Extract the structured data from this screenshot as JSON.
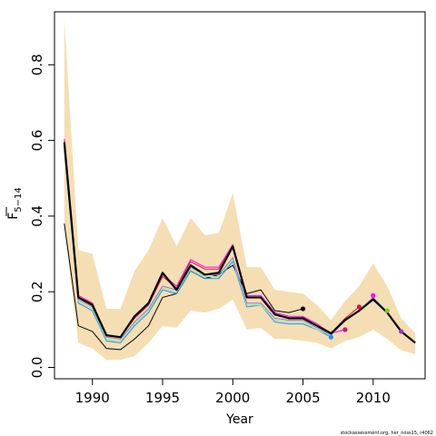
{
  "chart_data": {
    "type": "line",
    "xlabel": "Year",
    "ylabel_main": "F",
    "ylabel_sub": "5−14",
    "xlim": [
      1987.3,
      2013.7
    ],
    "ylim": [
      -0.03,
      0.94
    ],
    "xticks": [
      1990,
      1995,
      2000,
      2005,
      2010
    ],
    "yticks": [
      0.0,
      0.2,
      0.4,
      0.6,
      0.8
    ],
    "xtick_labels": [
      "1990",
      "1995",
      "2000",
      "2005",
      "2010"
    ],
    "ytick_labels": [
      "0.0",
      "0.2",
      "0.4",
      "0.6",
      "0.8"
    ],
    "grid": false,
    "credit": "stockassessment.org, her_noss15, r4062",
    "band": {
      "color": "#F5DEB3",
      "x": [
        1988,
        1989,
        1990,
        1991,
        1992,
        1993,
        1994,
        1995,
        1996,
        1997,
        1998,
        1999,
        2000,
        2001,
        2002,
        2003,
        2004,
        2005,
        2006,
        2007,
        2008,
        2009,
        2010,
        2011,
        2012,
        2013
      ],
      "lower": [
        0.37,
        0.065,
        0.05,
        0.02,
        0.02,
        0.03,
        0.065,
        0.11,
        0.105,
        0.15,
        0.145,
        0.155,
        0.18,
        0.1,
        0.105,
        0.075,
        0.075,
        0.07,
        0.065,
        0.05,
        0.07,
        0.08,
        0.1,
        0.075,
        0.045,
        0.035
      ],
      "upper": [
        0.92,
        0.31,
        0.3,
        0.155,
        0.155,
        0.255,
        0.31,
        0.395,
        0.32,
        0.395,
        0.35,
        0.355,
        0.46,
        0.265,
        0.265,
        0.205,
        0.2,
        0.195,
        0.165,
        0.125,
        0.175,
        0.215,
        0.275,
        0.215,
        0.13,
        0.09
      ]
    },
    "series": [
      {
        "color": "#000000",
        "width": 1,
        "x": [
          1988,
          1989,
          1990,
          1991,
          1992,
          1993,
          1994,
          1995,
          1996,
          1997,
          1998,
          1999,
          2000,
          2001,
          2002,
          2003,
          2004,
          2005
        ],
        "values": [
          0.38,
          0.11,
          0.095,
          0.05,
          0.047,
          0.075,
          0.11,
          0.185,
          0.195,
          0.255,
          0.235,
          0.245,
          0.27,
          0.195,
          0.205,
          0.15,
          0.145,
          0.155
        ]
      },
      {
        "color": "#FF00FF",
        "width": 1,
        "x": [
          1988,
          1989,
          1990,
          1991,
          1992,
          1993,
          1994,
          1995,
          1996,
          1997,
          1998,
          1999,
          2000,
          2001,
          2002,
          2003,
          2004,
          2005,
          2006,
          2007,
          2008
        ],
        "values": [
          0.605,
          0.19,
          0.17,
          0.085,
          0.08,
          0.13,
          0.17,
          0.245,
          0.215,
          0.285,
          0.265,
          0.265,
          0.325,
          0.19,
          0.19,
          0.145,
          0.135,
          0.135,
          0.115,
          0.09,
          0.1
        ]
      },
      {
        "color": "#DC143C",
        "width": 1,
        "x": [
          1988,
          1989,
          1990,
          1991,
          1992,
          1993,
          1994,
          1995,
          1996,
          1997,
          1998,
          1999,
          2000,
          2001,
          2002,
          2003,
          2004,
          2005,
          2006,
          2007,
          2008,
          2009
        ],
        "values": [
          0.6,
          0.185,
          0.17,
          0.085,
          0.08,
          0.13,
          0.165,
          0.24,
          0.21,
          0.28,
          0.26,
          0.26,
          0.32,
          0.185,
          0.185,
          0.14,
          0.13,
          0.13,
          0.11,
          0.09,
          0.13,
          0.16
        ]
      },
      {
        "color": "#1E90FF",
        "width": 1,
        "x": [
          1988,
          1989,
          1990,
          1991,
          1992,
          1993,
          1994,
          1995,
          1996,
          1997,
          1998,
          1999,
          2000,
          2001,
          2002,
          2003,
          2004,
          2005,
          2006,
          2007
        ],
        "values": [
          0.575,
          0.17,
          0.15,
          0.07,
          0.065,
          0.11,
          0.145,
          0.205,
          0.195,
          0.255,
          0.235,
          0.235,
          0.28,
          0.16,
          0.165,
          0.12,
          0.115,
          0.115,
          0.1,
          0.08
        ]
      },
      {
        "color": "#90EE90",
        "width": 1,
        "x": [
          1988,
          1989,
          1990,
          1991,
          1992,
          1993,
          1994,
          1995,
          1996,
          1997,
          1998,
          1999,
          2000,
          2001,
          2002,
          2003,
          2004,
          2005,
          2006,
          2007,
          2008,
          2009,
          2010,
          2011
        ],
        "values": [
          0.58,
          0.175,
          0.155,
          0.075,
          0.07,
          0.115,
          0.15,
          0.21,
          0.2,
          0.26,
          0.24,
          0.24,
          0.285,
          0.165,
          0.165,
          0.125,
          0.12,
          0.12,
          0.1,
          0.085,
          0.125,
          0.15,
          0.185,
          0.15
        ]
      },
      {
        "color": "#9370DB",
        "width": 1,
        "x": [
          1988,
          1989,
          1990,
          1991,
          1992,
          1993,
          1994,
          1995,
          1996,
          1997,
          1998,
          1999,
          2000,
          2001,
          2002,
          2003,
          2004,
          2005,
          2006,
          2007,
          2008,
          2009,
          2010,
          2011,
          2012
        ],
        "values": [
          0.585,
          0.18,
          0.16,
          0.08,
          0.075,
          0.12,
          0.155,
          0.215,
          0.205,
          0.265,
          0.245,
          0.245,
          0.29,
          0.17,
          0.17,
          0.13,
          0.125,
          0.125,
          0.105,
          0.085,
          0.125,
          0.15,
          0.185,
          0.145,
          0.095
        ]
      },
      {
        "color": "#000000",
        "width": 2.2,
        "x": [
          1988,
          1989,
          1990,
          1991,
          1992,
          1993,
          1994,
          1995,
          1996,
          1997,
          1998,
          1999,
          2000,
          2001,
          2002,
          2003,
          2004,
          2005,
          2006,
          2007,
          2008,
          2009,
          2010,
          2011,
          2012,
          2013
        ],
        "values": [
          0.595,
          0.185,
          0.165,
          0.085,
          0.08,
          0.135,
          0.17,
          0.25,
          0.205,
          0.27,
          0.245,
          0.25,
          0.32,
          0.185,
          0.185,
          0.14,
          0.13,
          0.13,
          0.11,
          0.09,
          0.125,
          0.15,
          0.18,
          0.145,
          0.095,
          0.065
        ]
      }
    ],
    "endpoints": [
      {
        "x": 2005,
        "y": 0.155,
        "color": "#000000"
      },
      {
        "x": 2007,
        "y": 0.08,
        "color": "#1E90FF"
      },
      {
        "x": 2008,
        "y": 0.1,
        "color": "#C71585"
      },
      {
        "x": 2009,
        "y": 0.16,
        "color": "#DC143C"
      },
      {
        "x": 2010,
        "y": 0.19,
        "color": "#FF00FF"
      },
      {
        "x": 2011,
        "y": 0.15,
        "color": "#7CCD00"
      },
      {
        "x": 2012,
        "y": 0.095,
        "color": "#9932CC"
      }
    ]
  }
}
